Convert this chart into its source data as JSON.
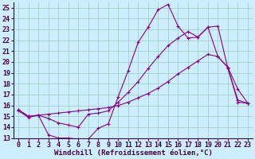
{
  "background_color": "#cceeff",
  "line_color": "#880088",
  "grid_color": "#99ccbb",
  "xlabel": "Windchill (Refroidissement éolien,°C)",
  "xlabel_fontsize": 6.5,
  "tick_fontsize": 6,
  "xlim": [
    -0.5,
    23.5
  ],
  "ylim": [
    13,
    25.5
  ],
  "yticks": [
    13,
    14,
    15,
    16,
    17,
    18,
    19,
    20,
    21,
    22,
    23,
    24,
    25
  ],
  "xticks": [
    0,
    1,
    2,
    3,
    4,
    5,
    6,
    7,
    8,
    9,
    10,
    11,
    12,
    13,
    14,
    15,
    16,
    17,
    18,
    19,
    20,
    21,
    22,
    23
  ],
  "curve1_x": [
    0,
    1,
    2,
    3,
    4,
    5,
    6,
    7,
    8,
    9,
    10,
    11,
    12,
    13,
    14,
    15,
    16,
    17,
    18,
    19,
    20,
    21,
    22,
    23
  ],
  "curve1_y": [
    15.6,
    15.0,
    15.1,
    13.3,
    13.0,
    13.0,
    12.9,
    12.9,
    13.9,
    14.3,
    16.8,
    19.2,
    21.8,
    23.2,
    24.8,
    25.3,
    23.3,
    22.2,
    22.3,
    23.2,
    20.5,
    19.5,
    17.5,
    16.2
  ],
  "curve2_x": [
    0,
    1,
    2,
    3,
    4,
    5,
    6,
    7,
    8,
    9,
    10,
    11,
    12,
    13,
    14,
    15,
    16,
    17,
    18,
    19,
    20,
    21,
    22,
    23
  ],
  "curve2_y": [
    15.6,
    15.0,
    15.1,
    14.8,
    14.4,
    14.2,
    14.0,
    15.2,
    15.3,
    15.5,
    16.3,
    17.2,
    18.2,
    19.4,
    20.5,
    21.5,
    22.2,
    22.8,
    22.3,
    23.2,
    23.3,
    19.4,
    16.5,
    16.2
  ],
  "curve3_x": [
    0,
    1,
    2,
    3,
    4,
    5,
    6,
    7,
    8,
    9,
    10,
    11,
    12,
    13,
    14,
    15,
    16,
    17,
    18,
    19,
    20,
    21,
    22,
    23
  ],
  "curve3_y": [
    15.5,
    14.9,
    15.1,
    15.2,
    15.3,
    15.4,
    15.5,
    15.6,
    15.7,
    15.8,
    16.0,
    16.3,
    16.7,
    17.1,
    17.6,
    18.2,
    18.9,
    19.5,
    20.1,
    20.7,
    20.5,
    19.5,
    16.3,
    16.2
  ]
}
